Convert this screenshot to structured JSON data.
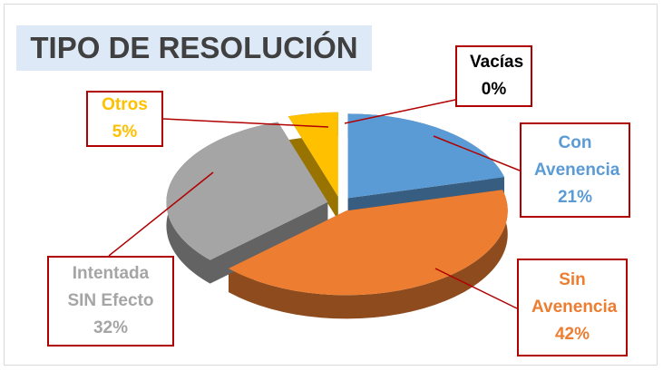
{
  "chart_data": {
    "type": "pie",
    "title": "TIPO DE RESOLUCIÓN",
    "categories": [
      "Con Avenencia",
      "Sin Avenencia",
      "Intentada SIN Efecto",
      "Otros",
      "Vacías"
    ],
    "values": [
      21,
      42,
      32,
      5,
      0
    ],
    "value_labels": [
      "21%",
      "42%",
      "32%",
      "5%",
      "0%"
    ],
    "colors": [
      "#5b9bd5",
      "#ed7d31",
      "#a5a5a5",
      "#ffc000",
      "#000000"
    ]
  }
}
